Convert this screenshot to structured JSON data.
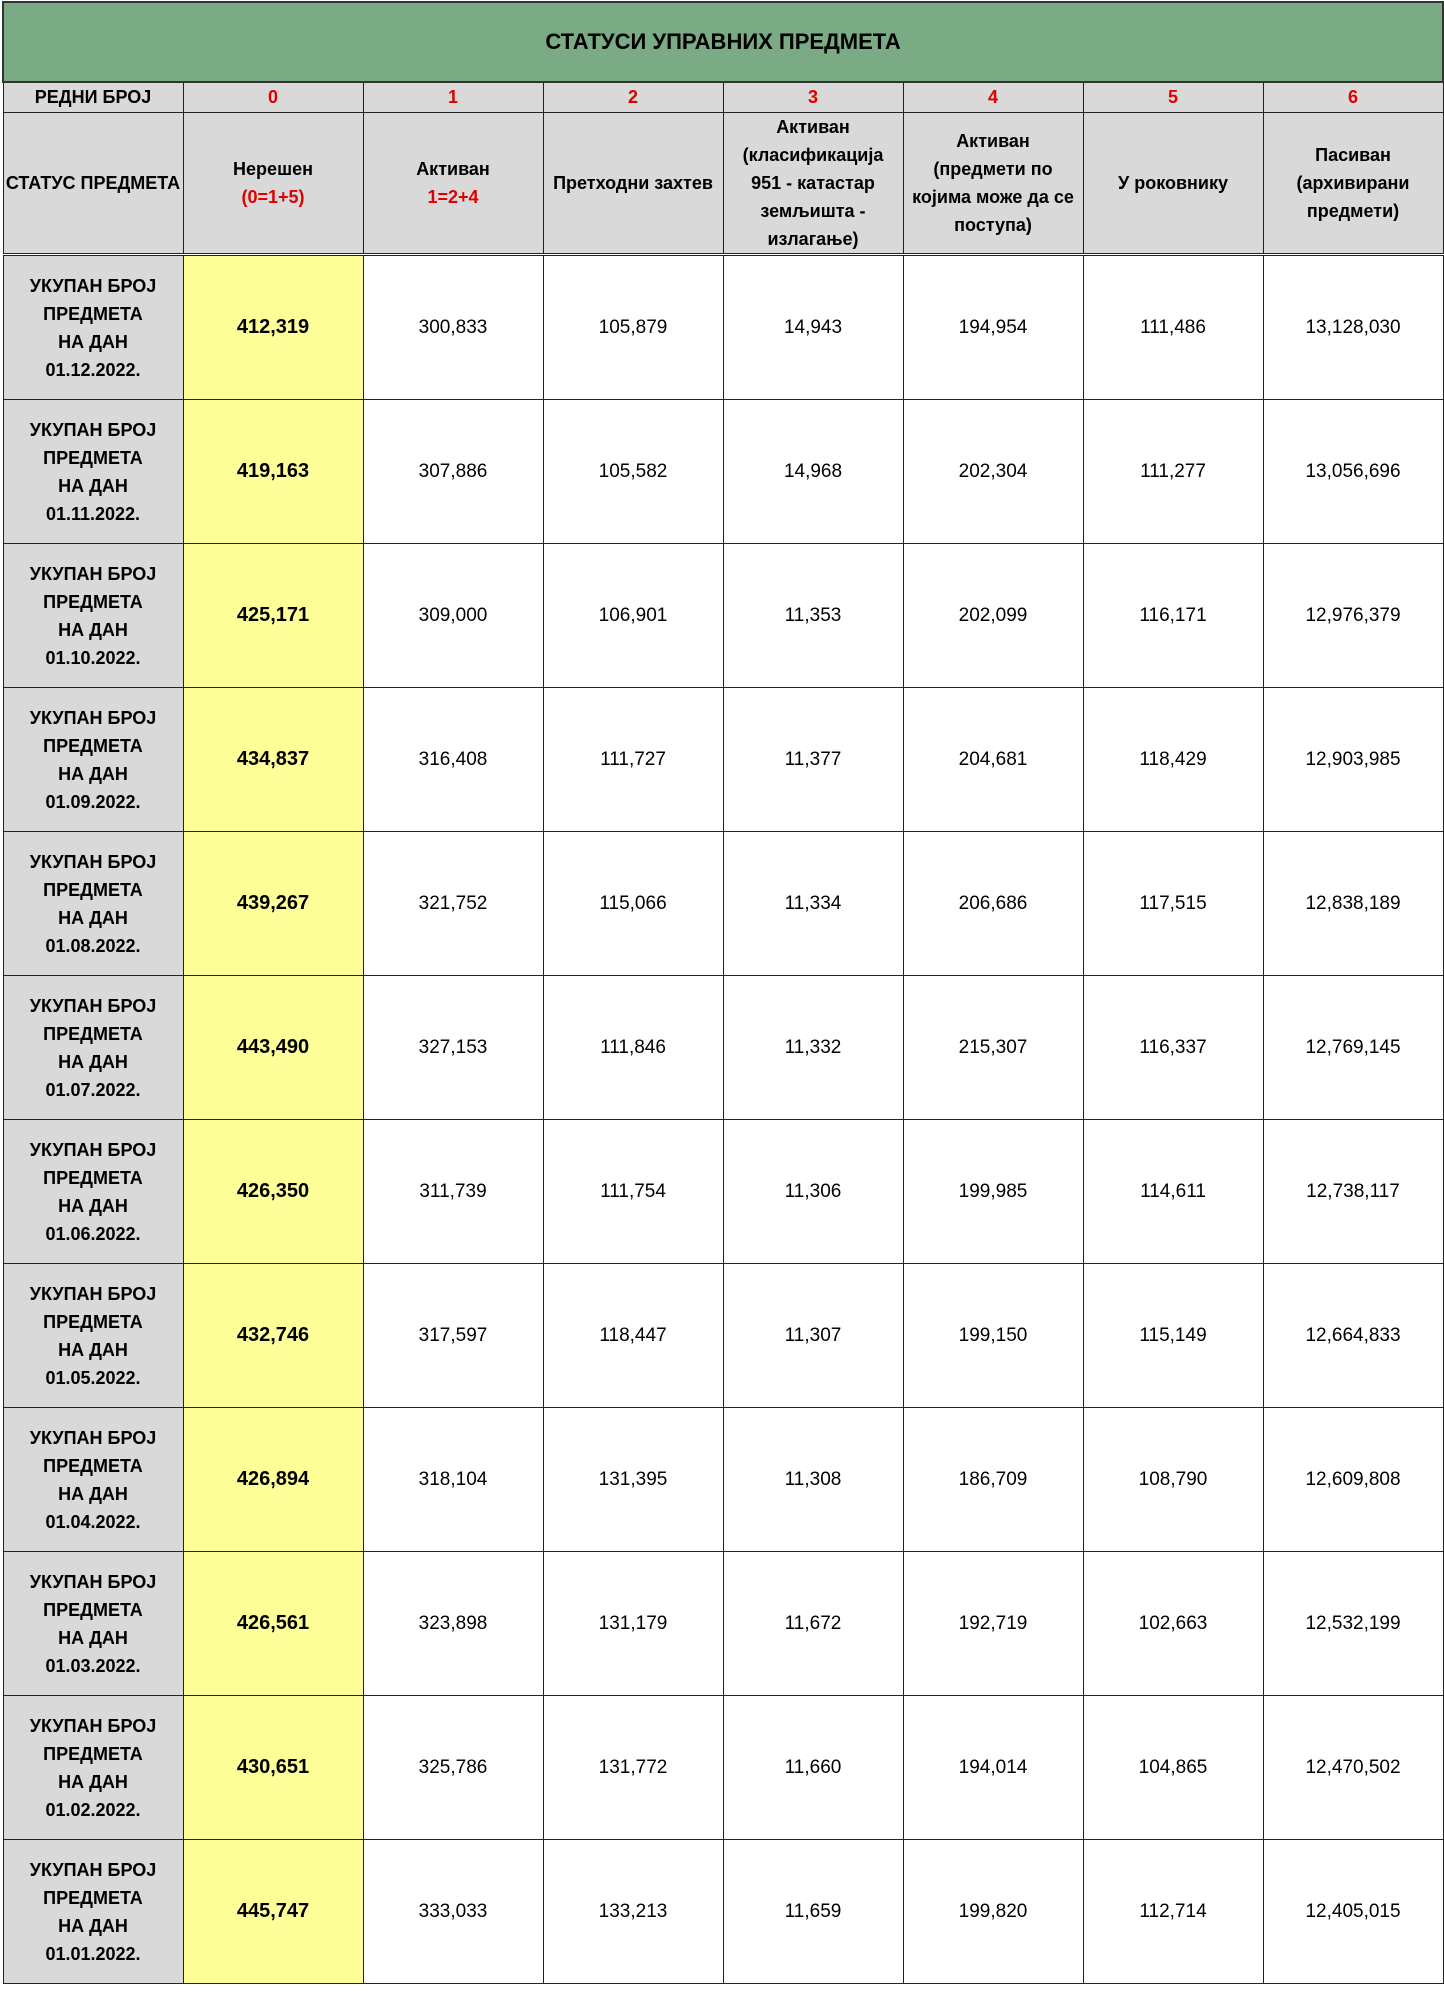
{
  "title": "СТАТУСИ УПРАВНИХ ПРЕДМЕТА",
  "number_row": {
    "label": "РЕДНИ БРОЈ",
    "values": [
      "0",
      "1",
      "2",
      "3",
      "4",
      "5",
      "6"
    ]
  },
  "header_row": {
    "label": "СТАТУС ПРЕДМЕТА",
    "columns": [
      {
        "lines": [
          "Нерешен"
        ],
        "formula": "(0=1+5)"
      },
      {
        "lines": [
          "Активан"
        ],
        "formula": "1=2+4"
      },
      {
        "lines": [
          "Претходни захтев"
        ],
        "formula": ""
      },
      {
        "lines": [
          "Активан",
          "(класификација",
          "951 -  катастар",
          "земљишта -",
          "излагање)"
        ],
        "formula": ""
      },
      {
        "lines": [
          "Активан",
          "(предмети по",
          "којима може да се",
          "поступа)"
        ],
        "formula": ""
      },
      {
        "lines": [
          "У роковнику"
        ],
        "formula": ""
      },
      {
        "lines": [
          "Пасиван",
          "(архивирани",
          "предмети)"
        ],
        "formula": ""
      }
    ]
  },
  "row_label_lines": [
    "УКУПАН БРОЈ",
    "ПРЕДМЕТА",
    "НА ДАН"
  ],
  "rows": [
    {
      "date": "01.12.2022.",
      "values": [
        "412,319",
        "300,833",
        "105,879",
        "14,943",
        "194,954",
        "111,486",
        "13,128,030"
      ]
    },
    {
      "date": "01.11.2022.",
      "values": [
        "419,163",
        "307,886",
        "105,582",
        "14,968",
        "202,304",
        "111,277",
        "13,056,696"
      ]
    },
    {
      "date": "01.10.2022.",
      "values": [
        "425,171",
        "309,000",
        "106,901",
        "11,353",
        "202,099",
        "116,171",
        "12,976,379"
      ]
    },
    {
      "date": "01.09.2022.",
      "values": [
        "434,837",
        "316,408",
        "111,727",
        "11,377",
        "204,681",
        "118,429",
        "12,903,985"
      ]
    },
    {
      "date": "01.08.2022.",
      "values": [
        "439,267",
        "321,752",
        "115,066",
        "11,334",
        "206,686",
        "117,515",
        "12,838,189"
      ]
    },
    {
      "date": "01.07.2022.",
      "values": [
        "443,490",
        "327,153",
        "111,846",
        "11,332",
        "215,307",
        "116,337",
        "12,769,145"
      ]
    },
    {
      "date": "01.06.2022.",
      "values": [
        "426,350",
        "311,739",
        "111,754",
        "11,306",
        "199,985",
        "114,611",
        "12,738,117"
      ]
    },
    {
      "date": "01.05.2022.",
      "values": [
        "432,746",
        "317,597",
        "118,447",
        "11,307",
        "199,150",
        "115,149",
        "12,664,833"
      ]
    },
    {
      "date": "01.04.2022.",
      "values": [
        "426,894",
        "318,104",
        "131,395",
        "11,308",
        "186,709",
        "108,790",
        "12,609,808"
      ]
    },
    {
      "date": "01.03.2022.",
      "values": [
        "426,561",
        "323,898",
        "131,179",
        "11,672",
        "192,719",
        "102,663",
        "12,532,199"
      ]
    },
    {
      "date": "01.02.2022.",
      "values": [
        "430,651",
        "325,786",
        "131,772",
        "11,660",
        "194,014",
        "104,865",
        "12,470,502"
      ]
    },
    {
      "date": "01.01.2022.",
      "values": [
        "445,747",
        "333,033",
        "133,213",
        "11,659",
        "199,820",
        "112,714",
        "12,405,015"
      ]
    }
  ]
}
